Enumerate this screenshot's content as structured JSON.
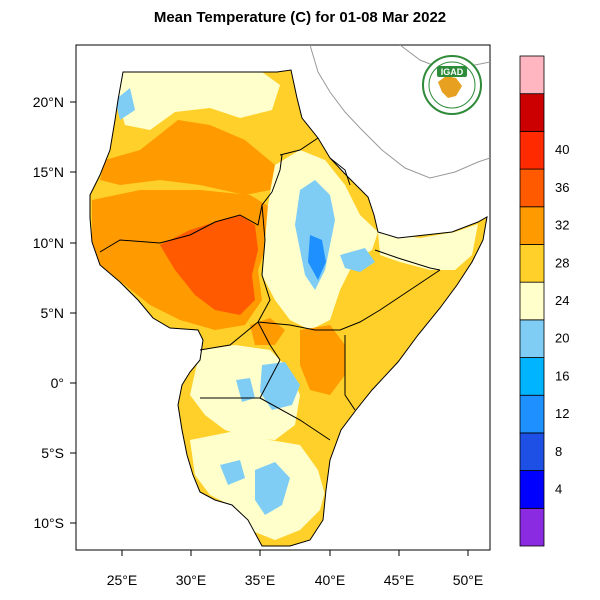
{
  "title": "Mean Temperature (C) for 01-08 Mar 2022",
  "logo": {
    "text": "IGAD"
  },
  "lat_ticks": [
    "20°N",
    "15°N",
    "10°N",
    "5°N",
    "0°",
    "5°S",
    "10°S"
  ],
  "lon_ticks": [
    "25°E",
    "30°E",
    "35°E",
    "40°E",
    "45°E",
    "50°E"
  ],
  "colorbar": {
    "labels": [
      "4",
      "8",
      "12",
      "16",
      "20",
      "24",
      "28",
      "32",
      "36",
      "40"
    ],
    "colors": [
      "#8a2be2",
      "#0000ff",
      "#1e50e6",
      "#1e90ff",
      "#00b4ff",
      "#7fcdf5",
      "#ffffcc",
      "#ffd02a",
      "#ff9a00",
      "#ff5a00",
      "#ff2a00",
      "#cc0000",
      "#ffb6c1"
    ]
  },
  "colors": {
    "ocean": "#ffffff",
    "very_hot": "#ff5a00",
    "hot": "#ff9a00",
    "warm": "#ffd02a",
    "mild": "#ffffcc",
    "cool": "#7fcdf5",
    "cold": "#1e90ff"
  }
}
